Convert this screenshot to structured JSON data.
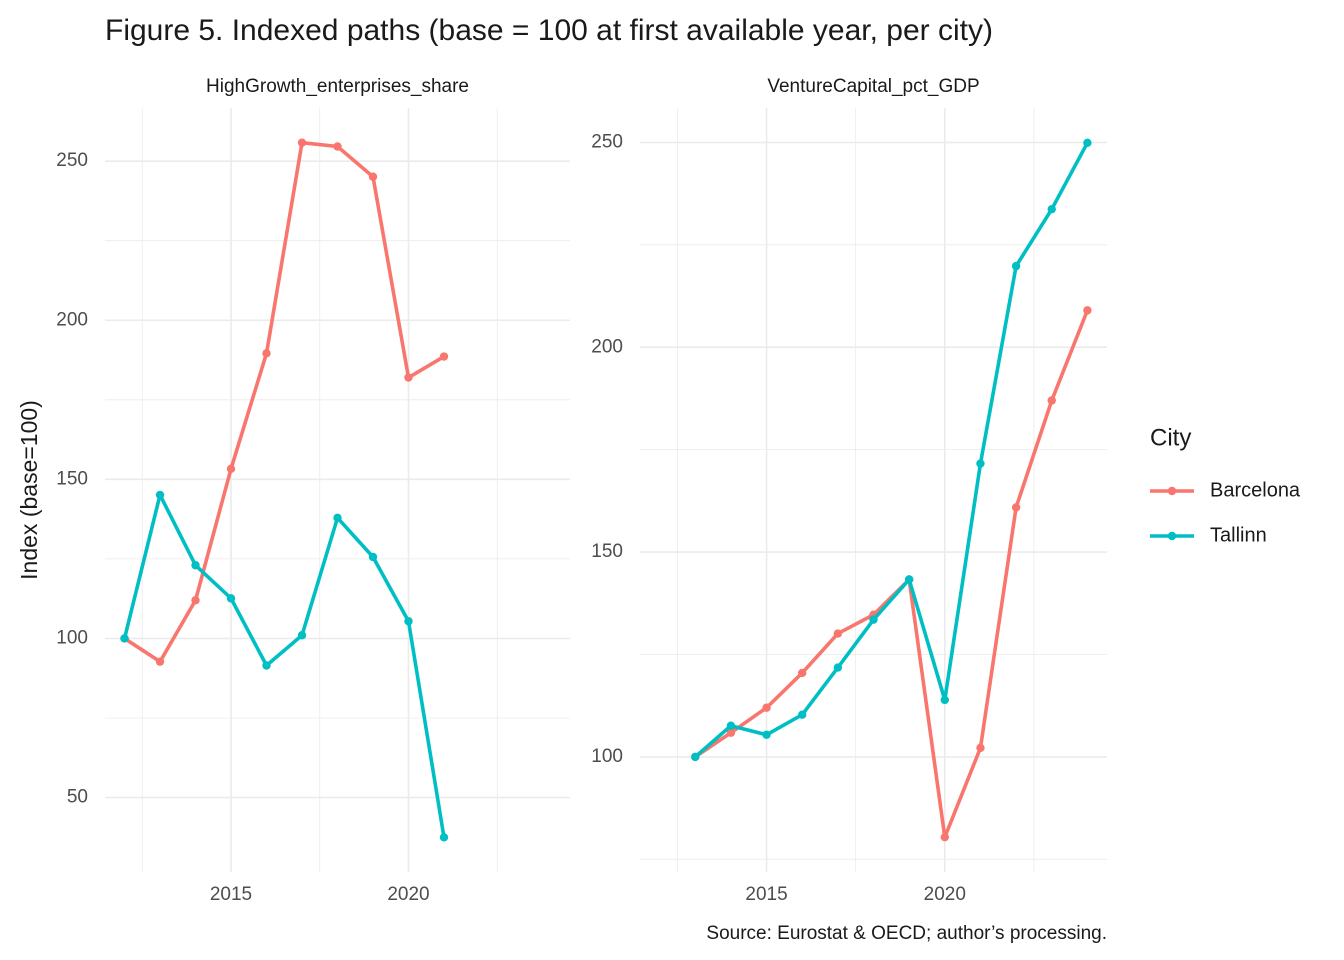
{
  "title": "Figure 5. Indexed paths (base = 100 at first available year, per city)",
  "y_label": "Index (base=100)",
  "legend": {
    "title": "City",
    "position": "right"
  },
  "caption": "Source: Eurostat & OECD; author’s processing.",
  "chart_data": [
    {
      "type": "line",
      "title": "HighGrowth_enterprises_share",
      "grid": true,
      "x": [
        2012,
        2013,
        2014,
        2015,
        2016,
        2017,
        2018,
        2019,
        2020,
        2021
      ],
      "series": [
        {
          "name": "Barcelona",
          "color": "#F8766D",
          "values": [
            100,
            92.7,
            112,
            153.3,
            189.6,
            255.8,
            254.6,
            245.1,
            182,
            188.6
          ]
        },
        {
          "name": "Tallinn",
          "color": "#00BFC4",
          "values": [
            100,
            145.1,
            123,
            112.6,
            91.5,
            101,
            137.9,
            125.6,
            105.4,
            37.5
          ]
        }
      ],
      "xlim": [
        2011.45,
        2024.55
      ],
      "xticks": [
        2015,
        2020
      ],
      "ylim": [
        26.6,
        266.7
      ],
      "yticks": [
        50,
        100,
        150,
        200,
        250
      ]
    },
    {
      "type": "line",
      "title": "VentureCapital_pct_GDP",
      "grid": true,
      "x": [
        2013,
        2014,
        2015,
        2016,
        2017,
        2018,
        2019,
        2020,
        2021,
        2022,
        2023,
        2024
      ],
      "series": [
        {
          "name": "Barcelona",
          "color": "#F8766D",
          "values": [
            100,
            105.9,
            112,
            120.5,
            130.1,
            134.7,
            143.3,
            80.4,
            102.2,
            160.9,
            187,
            209
          ]
        },
        {
          "name": "Tallinn",
          "color": "#00BFC4",
          "values": [
            100,
            107.6,
            105.4,
            110.3,
            121.8,
            133.5,
            143.3,
            113.9,
            171.6,
            219.8,
            233.7,
            249.9
          ]
        }
      ],
      "xlim": [
        2011.45,
        2024.55
      ],
      "xticks": [
        2015,
        2020
      ],
      "ylim": [
        71.9,
        258.4
      ],
      "yticks": [
        100,
        150,
        200,
        250
      ]
    }
  ]
}
